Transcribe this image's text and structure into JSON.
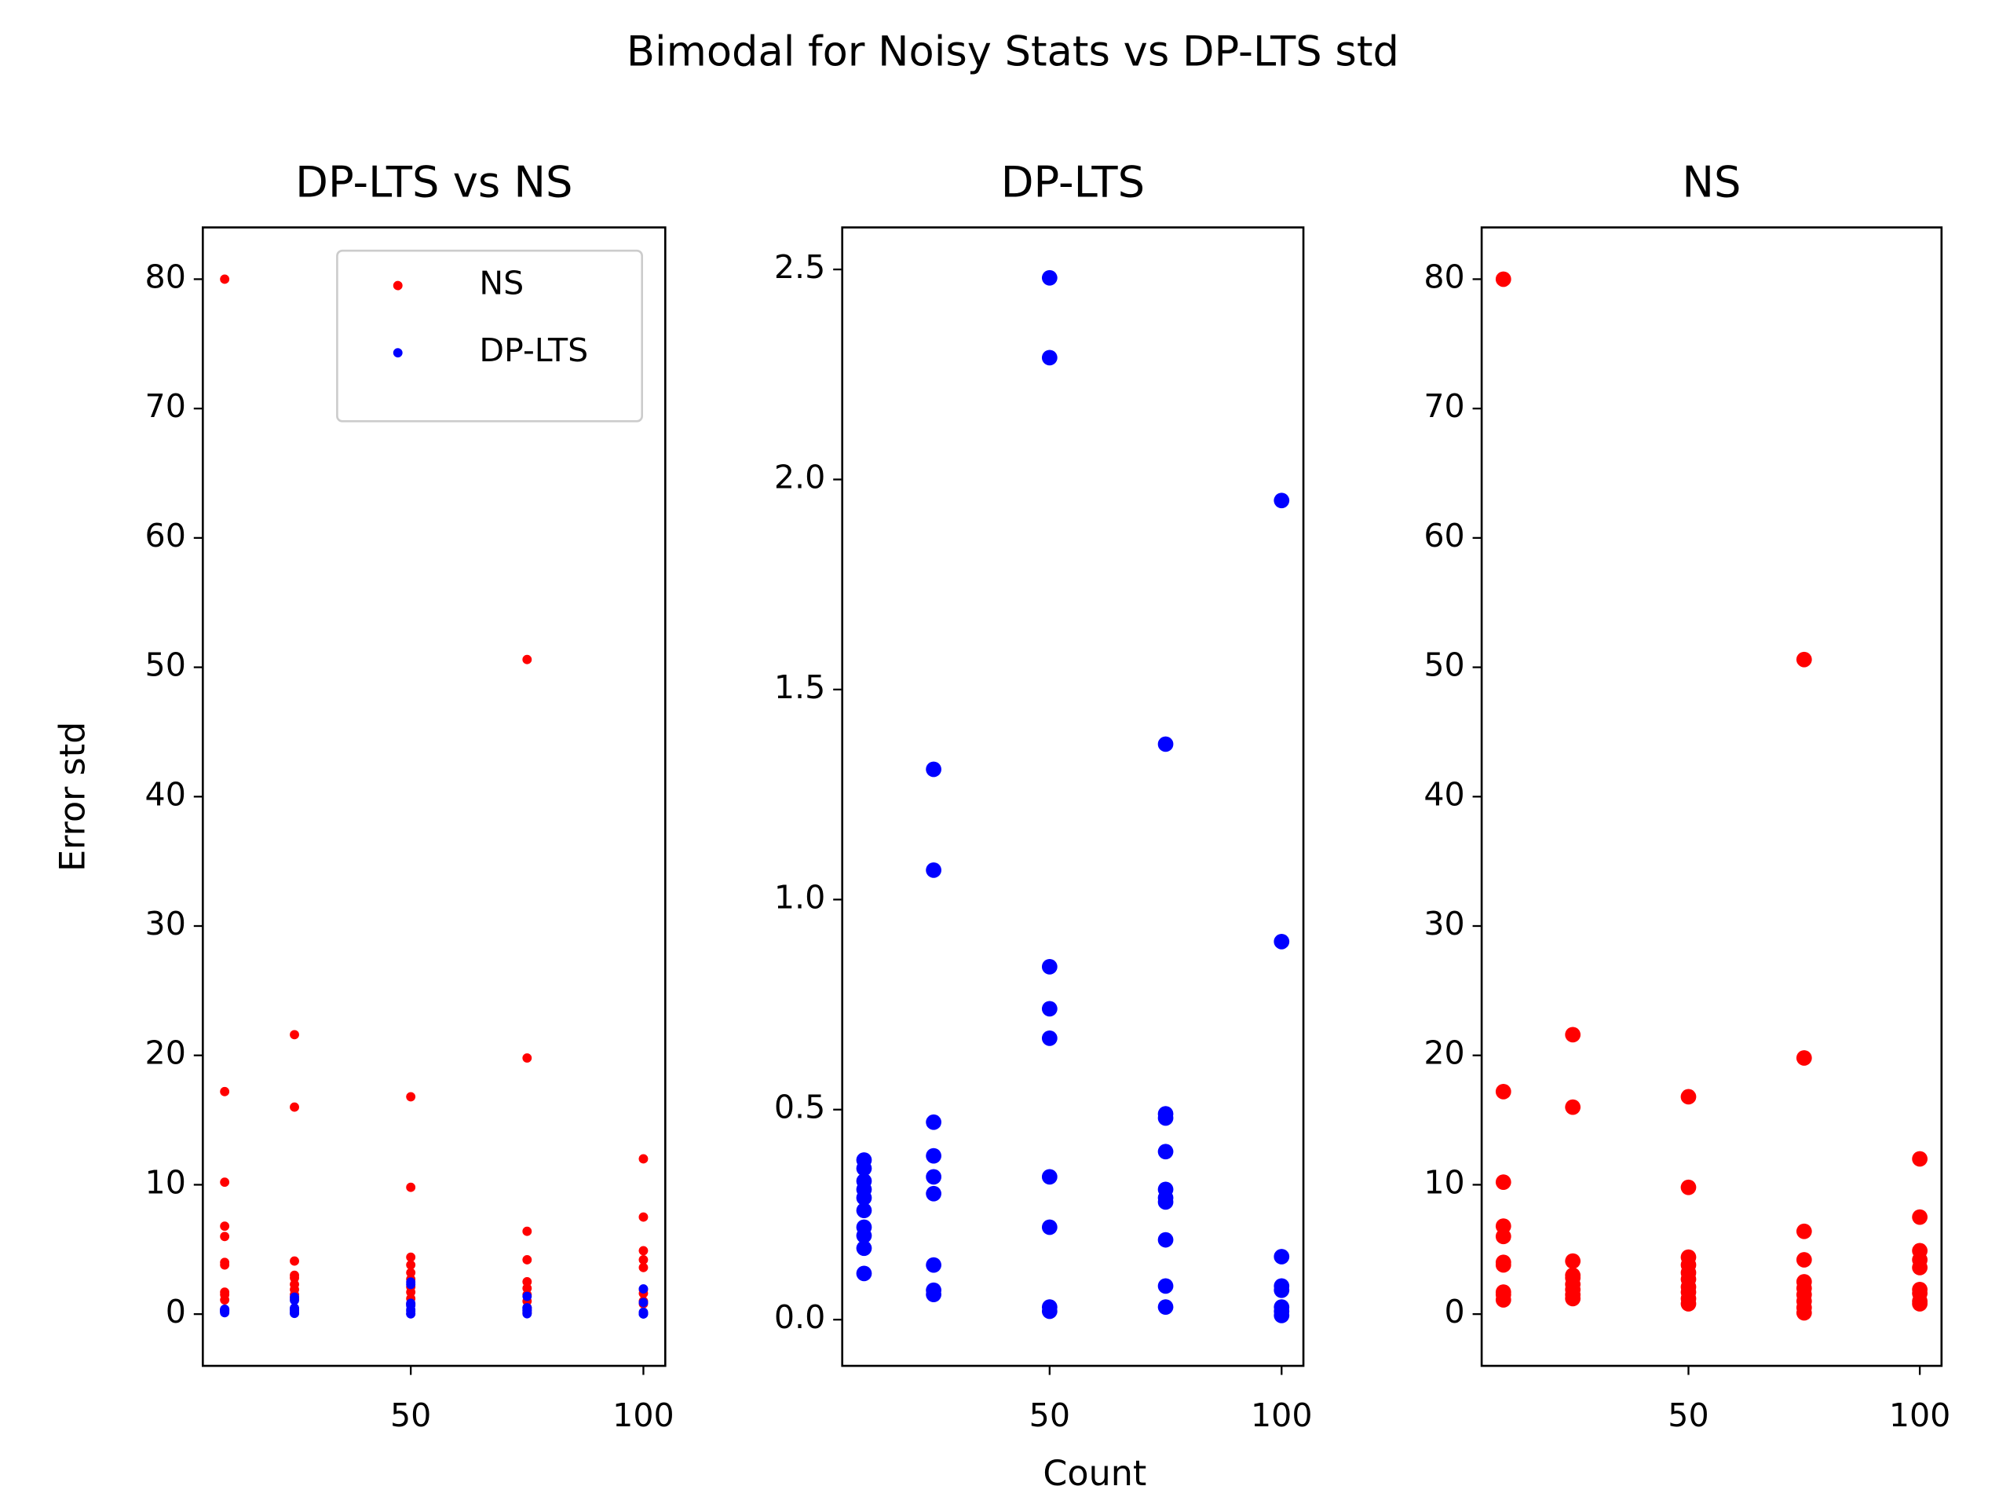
{
  "title": "Bimodal for Noisy Stats vs DP-LTS std",
  "chart_data": [
    {
      "type": "scatter",
      "title": "DP-LTS vs NS",
      "ylabel": "Error std",
      "legend": "upper right",
      "xlim": [
        5.3,
        104.7
      ],
      "xticks": [
        50,
        100
      ],
      "ylim": [
        -4,
        84
      ],
      "yticks": [
        0,
        10,
        20,
        30,
        40,
        50,
        60,
        70,
        80
      ],
      "series": [
        {
          "name": "NS",
          "color": "#ff0000",
          "x": [
            10,
            10,
            10,
            10,
            10,
            10,
            10,
            10,
            10,
            10,
            25,
            25,
            25,
            25,
            25,
            25,
            25,
            25,
            25,
            50,
            50,
            50,
            50,
            50,
            50,
            50,
            50,
            50,
            50,
            75,
            75,
            75,
            75,
            75,
            75,
            75,
            75,
            75,
            75,
            100,
            100,
            100,
            100,
            100,
            100,
            100,
            100,
            100
          ],
          "values": [
            80,
            17.2,
            10.2,
            6.8,
            6,
            4,
            3.8,
            1.7,
            1.5,
            1.1,
            21.6,
            16,
            4.1,
            3,
            2.8,
            2.3,
            1.9,
            1.5,
            1.2,
            16.8,
            9.8,
            4.4,
            3.8,
            3.2,
            2.7,
            2.1,
            1.7,
            1.2,
            0.8,
            50.6,
            19.8,
            6.4,
            4.2,
            2.5,
            2,
            1.5,
            1,
            0.5,
            0.1,
            12,
            7.5,
            4.9,
            4.2,
            3.6,
            1.9,
            1.6,
            1,
            0.8
          ]
        },
        {
          "name": "DP-LTS",
          "color": "#0000ff",
          "x": [
            10,
            10,
            10,
            10,
            10,
            10,
            10,
            10,
            10,
            10,
            25,
            25,
            25,
            25,
            25,
            25,
            25,
            25,
            25,
            50,
            50,
            50,
            50,
            50,
            50,
            50,
            50,
            50,
            75,
            75,
            75,
            75,
            75,
            75,
            75,
            75,
            75,
            75,
            100,
            100,
            100,
            100,
            100,
            100,
            100,
            100
          ],
          "values": [
            0.38,
            0.36,
            0.33,
            0.31,
            0.29,
            0.26,
            0.22,
            0.2,
            0.17,
            0.11,
            1.31,
            1.07,
            0.47,
            0.39,
            0.34,
            0.3,
            0.13,
            0.07,
            0.06,
            2.48,
            2.29,
            0.84,
            0.74,
            0.67,
            0.34,
            0.22,
            0.03,
            0.02,
            1.37,
            0.49,
            0.48,
            0.4,
            0.31,
            0.29,
            0.28,
            0.19,
            0.08,
            0.03,
            1.95,
            0.9,
            0.15,
            0.08,
            0.07,
            0.03,
            0.02,
            0.01
          ]
        }
      ]
    },
    {
      "type": "scatter",
      "title": "DP-LTS",
      "xlabel": "Count",
      "xlim": [
        5.3,
        104.7
      ],
      "xticks": [
        50,
        100
      ],
      "ylim": [
        -0.11,
        2.6
      ],
      "yticks": [
        {
          "value": 0,
          "label": "0.0"
        },
        0.5,
        {
          "value": 1,
          "label": "1.0"
        },
        1.5,
        {
          "value": 2,
          "label": "2.0"
        },
        2.5
      ],
      "series": [
        {
          "color": "#0000ff",
          "x": [
            10,
            10,
            10,
            10,
            10,
            10,
            10,
            10,
            10,
            10,
            25,
            25,
            25,
            25,
            25,
            25,
            25,
            25,
            25,
            50,
            50,
            50,
            50,
            50,
            50,
            50,
            50,
            50,
            75,
            75,
            75,
            75,
            75,
            75,
            75,
            75,
            75,
            75,
            100,
            100,
            100,
            100,
            100,
            100,
            100,
            100
          ],
          "values": [
            0.38,
            0.36,
            0.33,
            0.31,
            0.29,
            0.26,
            0.22,
            0.2,
            0.17,
            0.11,
            1.31,
            1.07,
            0.47,
            0.39,
            0.34,
            0.3,
            0.13,
            0.07,
            0.06,
            2.48,
            2.29,
            0.84,
            0.74,
            0.67,
            0.34,
            0.22,
            0.03,
            0.02,
            1.37,
            0.49,
            0.48,
            0.4,
            0.31,
            0.29,
            0.28,
            0.19,
            0.08,
            0.03,
            1.95,
            0.9,
            0.15,
            0.08,
            0.07,
            0.03,
            0.02,
            0.01
          ]
        }
      ]
    },
    {
      "type": "scatter",
      "title": "NS",
      "xlim": [
        5.3,
        104.7
      ],
      "xticks": [
        50,
        100
      ],
      "ylim": [
        -4,
        84
      ],
      "yticks": [
        0,
        10,
        20,
        30,
        40,
        50,
        60,
        70,
        80
      ],
      "series": [
        {
          "color": "#ff0000",
          "x": [
            10,
            10,
            10,
            10,
            10,
            10,
            10,
            10,
            10,
            10,
            25,
            25,
            25,
            25,
            25,
            25,
            25,
            25,
            25,
            50,
            50,
            50,
            50,
            50,
            50,
            50,
            50,
            50,
            50,
            75,
            75,
            75,
            75,
            75,
            75,
            75,
            75,
            75,
            75,
            100,
            100,
            100,
            100,
            100,
            100,
            100,
            100,
            100
          ],
          "values": [
            80,
            17.2,
            10.2,
            6.8,
            6,
            4,
            3.8,
            1.7,
            1.5,
            1.1,
            21.6,
            16,
            4.1,
            3,
            2.8,
            2.3,
            1.9,
            1.5,
            1.2,
            16.8,
            9.8,
            4.4,
            3.8,
            3.2,
            2.7,
            2.1,
            1.7,
            1.2,
            0.8,
            50.6,
            19.8,
            6.4,
            4.2,
            2.5,
            2,
            1.5,
            1,
            0.5,
            0.1,
            12,
            7.5,
            4.9,
            4.2,
            3.6,
            1.9,
            1.6,
            1,
            0.8
          ]
        }
      ]
    }
  ]
}
